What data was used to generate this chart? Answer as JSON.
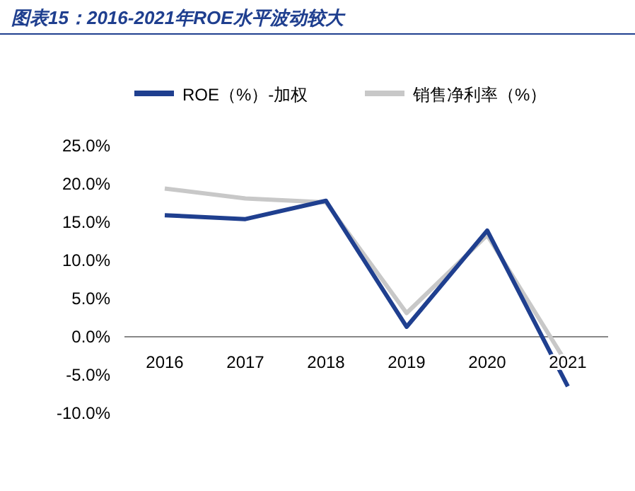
{
  "chart_data": {
    "type": "line",
    "title": "图表15：2016-2021年ROE水平波动较大",
    "categories": [
      "2016",
      "2017",
      "2018",
      "2019",
      "2020",
      "2021"
    ],
    "series": [
      {
        "name": "ROE（%）-加权",
        "color": "#1f3f8f",
        "values": [
          15.9,
          15.4,
          17.8,
          1.3,
          13.9,
          -6.5
        ]
      },
      {
        "name": "销售净利率（%）",
        "color": "#c8c8c8",
        "values": [
          19.4,
          18.1,
          17.6,
          3.1,
          13.3,
          -3.7
        ]
      }
    ],
    "ylim": [
      -10,
      25
    ],
    "yticks": [
      {
        "value": -10,
        "label": "-10.0%"
      },
      {
        "value": -5,
        "label": "-5.0%"
      },
      {
        "value": 0,
        "label": "0.0%"
      },
      {
        "value": 5,
        "label": "5.0%"
      },
      {
        "value": 10,
        "label": "10.0%"
      },
      {
        "value": 15,
        "label": "15.0%"
      },
      {
        "value": 20,
        "label": "20.0%"
      },
      {
        "value": 25,
        "label": "25.0%"
      }
    ],
    "grid": false,
    "legend": "top",
    "marker": "none",
    "line_style": "solid"
  }
}
